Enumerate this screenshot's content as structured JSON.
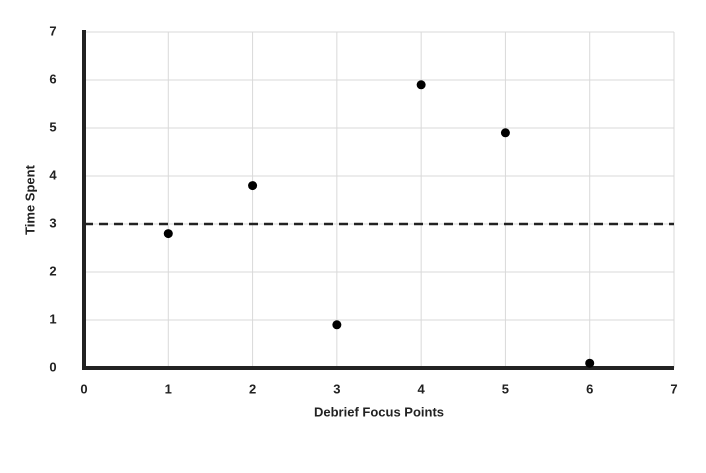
{
  "chart_data": {
    "type": "scatter",
    "xlabel": "Debrief Focus Points",
    "ylabel": "Time Spent",
    "x": [
      1,
      2,
      3,
      4,
      5,
      6
    ],
    "series": [
      {
        "color": "#000000",
        "values": [
          2.8,
          3.8,
          0.9,
          5.9,
          4.9,
          0.1
        ]
      }
    ],
    "xlim": [
      0,
      7
    ],
    "ylim": [
      0,
      7
    ],
    "xticks": [
      0,
      1,
      2,
      3,
      4,
      5,
      6,
      7
    ],
    "yticks": [
      0,
      1,
      2,
      3,
      4,
      5,
      6,
      7
    ],
    "hline": 3,
    "grid": true
  }
}
